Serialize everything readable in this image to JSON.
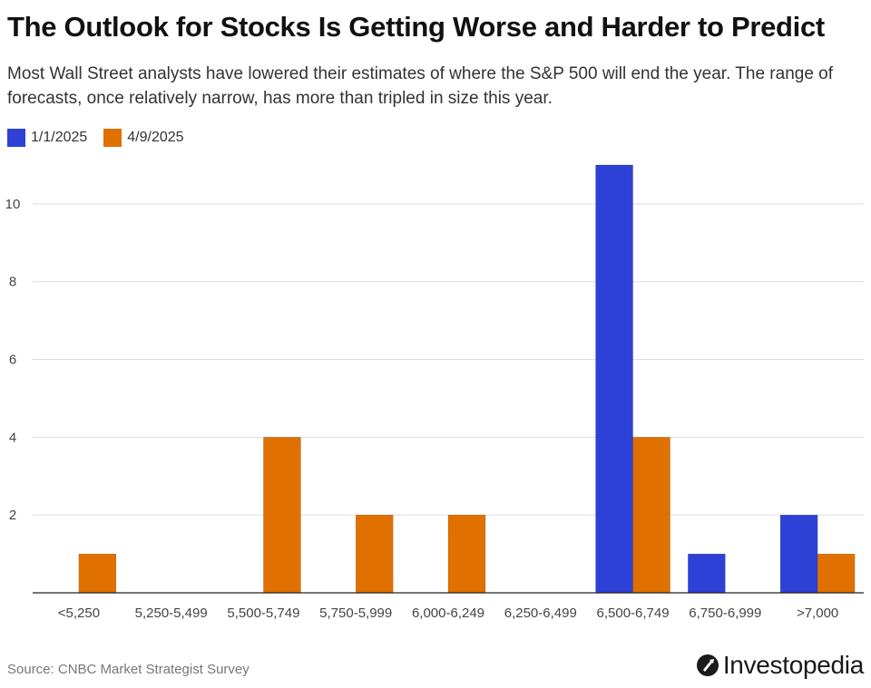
{
  "title": "The Outlook for Stocks Is Getting Worse and Harder to Predict",
  "subtitle": "Most Wall Street analysts have lowered their estimates of where the S&P 500 will end the year. The range of forecasts, once relatively narrow, has more than tripled in size this year.",
  "source": "Source: CNBC Market Strategist Survey",
  "brand": {
    "name": "Investopedia",
    "icon": "investopedia-logo-icon"
  },
  "colors": {
    "series1": "#2e41d6",
    "series2": "#e07000",
    "grid": "#dddddd",
    "axis": "#222222",
    "tick_text": "#444444"
  },
  "chart_data": {
    "type": "bar",
    "categories": [
      "<5,250",
      "5,250-5,499",
      "5,500-5,749",
      "5,750-5,999",
      "6,000-6,249",
      "6,250-6,499",
      "6,500-6,749",
      "6,750-6,999",
      ">7,000"
    ],
    "series": [
      {
        "name": "1/1/2025",
        "color": "#2e41d6",
        "values": [
          0,
          0,
          0,
          0,
          0,
          0,
          11,
          1,
          2
        ]
      },
      {
        "name": "4/9/2025",
        "color": "#e07000",
        "values": [
          1,
          0,
          4,
          2,
          2,
          0,
          4,
          0,
          1
        ]
      }
    ],
    "ylim": [
      0,
      11
    ],
    "yticks": [
      2,
      4,
      6,
      8,
      10
    ],
    "grid": true,
    "legend_position": "top-left"
  }
}
